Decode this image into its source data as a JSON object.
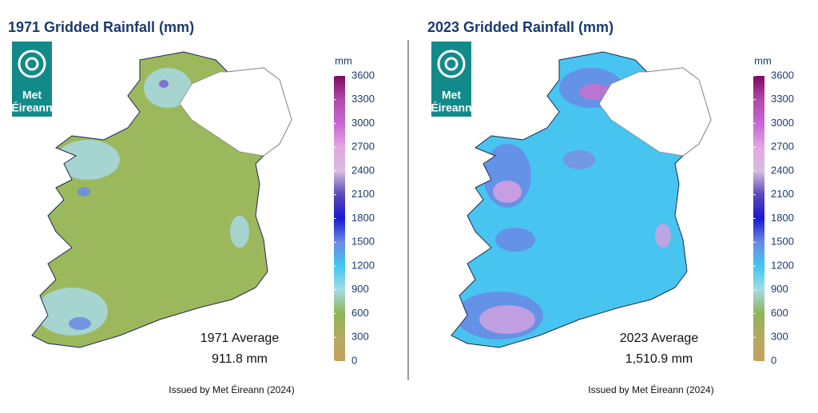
{
  "panels": [
    {
      "title": "1971 Gridded Rainfall (mm)",
      "logo": [
        "Met",
        "Éireann"
      ],
      "legend": {
        "unit": "mm",
        "range": [
          0,
          3600
        ],
        "ticks": [
          0,
          300,
          600,
          900,
          1200,
          1500,
          1800,
          2100,
          2400,
          2700,
          3000,
          3300,
          3600
        ],
        "colors": [
          "#c8a05a",
          "#b4aa62",
          "#8fb455",
          "#a4dce4",
          "#3ec6f2",
          "#6a8ae4",
          "#1818d4",
          "#5a48b8",
          "#d8bce0",
          "#e2a6e2",
          "#c866d4",
          "#b04aa8",
          "#7c0a5e"
        ]
      },
      "average_label": "1971 Average",
      "average_value": "911.8 mm",
      "footer": "Issued by Met Éireann (2024)"
    },
    {
      "title": "2023 Gridded Rainfall (mm)",
      "logo": [
        "Met",
        "Éireann"
      ],
      "legend": {
        "unit": "mm",
        "range": [
          0,
          3600
        ],
        "ticks": [
          0,
          300,
          600,
          900,
          1200,
          1500,
          1800,
          2100,
          2400,
          2700,
          3000,
          3300,
          3600
        ],
        "colors": [
          "#c8a05a",
          "#b4aa62",
          "#8fb455",
          "#a4dce4",
          "#3ec6f2",
          "#6a8ae4",
          "#1818d4",
          "#5a48b8",
          "#d8bce0",
          "#e2a6e2",
          "#c866d4",
          "#b04aa8",
          "#7c0a5e"
        ]
      },
      "average_label": "2023 Average",
      "average_value": "1,510.9 mm",
      "footer": "Issued by Met Éireann (2024)"
    }
  ]
}
